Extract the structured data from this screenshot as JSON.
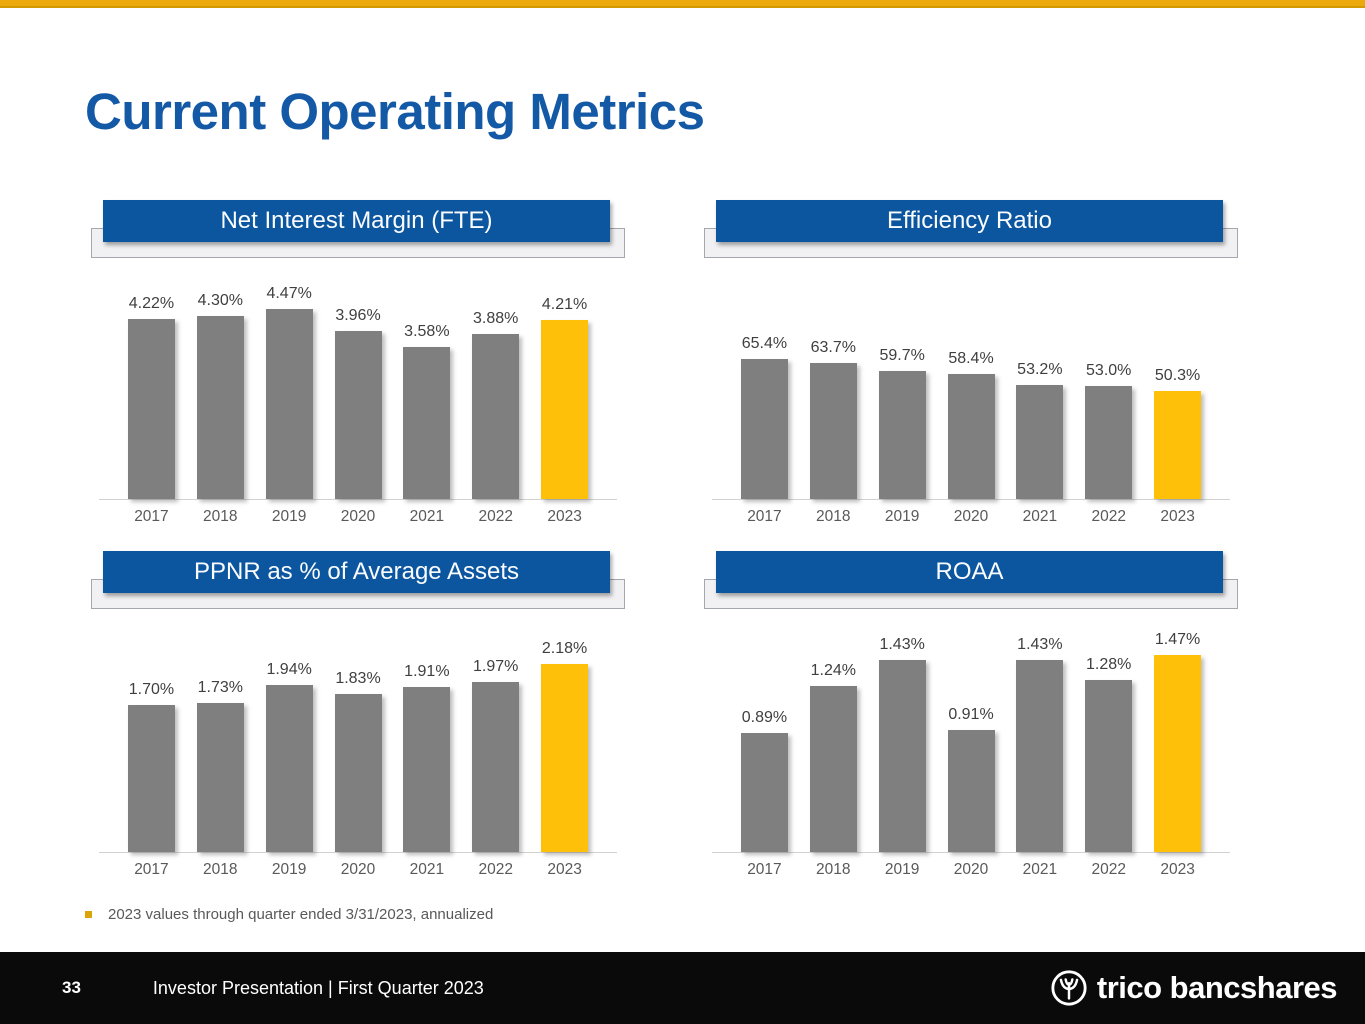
{
  "slide": {
    "title": "Current Operating Metrics",
    "footnote": "2023 values through quarter ended 3/31/2023, annualized"
  },
  "footer": {
    "page_number": "33",
    "text": "Investor Presentation | First Quarter 2023",
    "logo_text": "trico bancshares"
  },
  "colors": {
    "accent_gold": "#EBA90B",
    "title_blue": "#1459A6",
    "banner_blue": "#0C56A0",
    "bar_gray": "#7F7F7F",
    "bar_highlight_gold": "#FFC00A",
    "footer_black": "#0A0A0A"
  },
  "chart_data": [
    {
      "type": "bar",
      "title": "Net Interest Margin (FTE)",
      "categories": [
        "2017",
        "2018",
        "2019",
        "2020",
        "2021",
        "2022",
        "2023"
      ],
      "values": [
        4.22,
        4.3,
        4.47,
        3.96,
        3.58,
        3.88,
        4.21
      ],
      "labels": [
        "4.22%",
        "4.30%",
        "4.47%",
        "3.96%",
        "3.58%",
        "3.88%",
        "4.21%"
      ],
      "ylim": [
        0,
        4.7
      ],
      "highlight_index": 6,
      "grid": false,
      "legend": "none",
      "xlabel": "",
      "ylabel": ""
    },
    {
      "type": "bar",
      "title": "Efficiency Ratio",
      "categories": [
        "2017",
        "2018",
        "2019",
        "2020",
        "2021",
        "2022",
        "2023"
      ],
      "values": [
        65.4,
        63.7,
        59.7,
        58.4,
        53.2,
        53.0,
        50.3
      ],
      "labels": [
        "65.4%",
        "63.7%",
        "59.7%",
        "58.4%",
        "53.2%",
        "53.0%",
        "50.3%"
      ],
      "ylim": [
        0,
        93.5
      ],
      "highlight_index": 6,
      "grid": false,
      "legend": "none",
      "xlabel": "",
      "ylabel": ""
    },
    {
      "type": "bar",
      "title": "PPNR as % of Average Assets",
      "categories": [
        "2017",
        "2018",
        "2019",
        "2020",
        "2021",
        "2022",
        "2023"
      ],
      "values": [
        1.7,
        1.73,
        1.94,
        1.83,
        1.91,
        1.97,
        2.18
      ],
      "labels": [
        "1.70%",
        "1.73%",
        "1.94%",
        "1.83%",
        "1.91%",
        "1.97%",
        "2.18%"
      ],
      "ylim": [
        0,
        2.32
      ],
      "highlight_index": 6,
      "grid": false,
      "legend": "none",
      "xlabel": "",
      "ylabel": ""
    },
    {
      "type": "bar",
      "title": "ROAA",
      "categories": [
        "2017",
        "2018",
        "2019",
        "2020",
        "2021",
        "2022",
        "2023"
      ],
      "values": [
        0.89,
        1.24,
        1.43,
        0.91,
        1.43,
        1.28,
        1.47
      ],
      "labels": [
        "0.89%",
        "1.24%",
        "1.43%",
        "0.91%",
        "1.43%",
        "1.28%",
        "1.47%"
      ],
      "ylim": [
        0,
        1.49
      ],
      "highlight_index": 6,
      "grid": false,
      "legend": "none",
      "xlabel": "",
      "ylabel": ""
    }
  ]
}
